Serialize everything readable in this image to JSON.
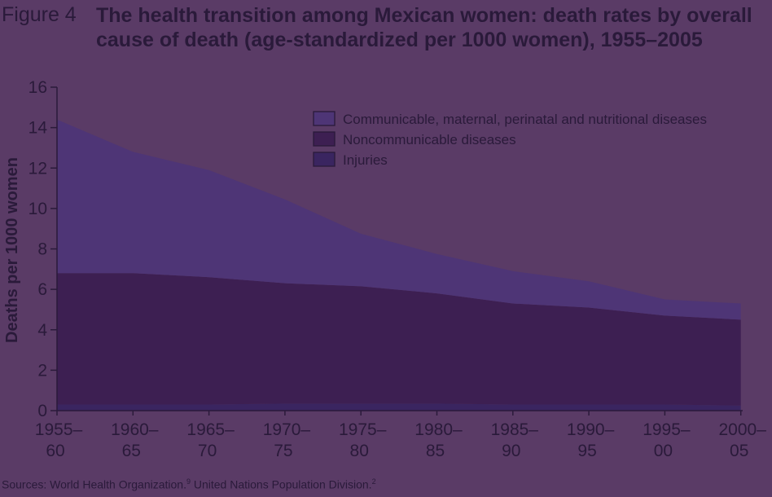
{
  "figure": {
    "label": "Figure 4",
    "title": "The health transition among Mexican women: death rates by overall cause of death (age-standardized per 1000 women), 1955–2005"
  },
  "chart_data": {
    "type": "area",
    "stacked": true,
    "title": "The health transition among Mexican women: death rates by overall cause of death (age-standardized per 1000 women), 1955–2005",
    "xlabel": "",
    "ylabel": "Deaths per 1000 women",
    "ylim": [
      0,
      16
    ],
    "yticks": [
      0,
      2,
      4,
      6,
      8,
      10,
      12,
      14,
      16
    ],
    "categories": [
      "1955–60",
      "1960–65",
      "1965–70",
      "1970–75",
      "1975–80",
      "1980–85",
      "1985–90",
      "1990–95",
      "1995–00",
      "2000–05"
    ],
    "category_lines": [
      [
        "1955–",
        "60"
      ],
      [
        "1960–",
        "65"
      ],
      [
        "1965–",
        "70"
      ],
      [
        "1970–",
        "75"
      ],
      [
        "1975–",
        "80"
      ],
      [
        "1980–",
        "85"
      ],
      [
        "1985–",
        "90"
      ],
      [
        "1990–",
        "95"
      ],
      [
        "1995–",
        "00"
      ],
      [
        "2000–",
        "05"
      ]
    ],
    "series": [
      {
        "name": "Injuries",
        "color": "#3a2560",
        "values": [
          0.3,
          0.3,
          0.3,
          0.35,
          0.35,
          0.35,
          0.3,
          0.3,
          0.3,
          0.25
        ]
      },
      {
        "name": "Noncommunicable diseases",
        "color": "#3d1f52",
        "values": [
          6.5,
          6.5,
          6.3,
          5.95,
          5.8,
          5.45,
          5.0,
          4.8,
          4.4,
          4.25
        ]
      },
      {
        "name": "Communicable, maternal, perinatal and nutritional diseases",
        "color": "#4e3576",
        "values": [
          7.6,
          6.0,
          5.3,
          4.15,
          2.6,
          1.95,
          1.6,
          1.3,
          0.8,
          0.8
        ]
      }
    ],
    "legend": {
      "placement": "top-right",
      "entries": [
        {
          "label": "Communicable, maternal, perinatal and nutritional diseases",
          "color": "#4e3576"
        },
        {
          "label": "Noncommunicable diseases",
          "color": "#3d1f52"
        },
        {
          "label": "Injuries",
          "color": "#3a2560"
        }
      ]
    },
    "grid": false
  },
  "source": {
    "prefix": "Sources: World Health Organization.",
    "ref1": "9",
    "middle": " United Nations Population Division.",
    "ref2": "2"
  }
}
